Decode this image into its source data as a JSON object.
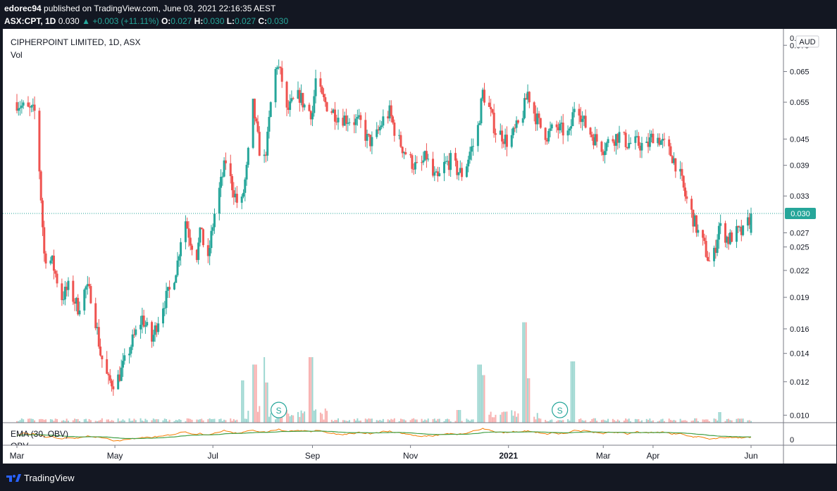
{
  "header": {
    "user": "edorec94",
    "published": "published on TradingView.com, June 03, 2021 22:16:35 AEST",
    "symbol_line": "ASX:CPT, 1D",
    "last": "0.030",
    "change": "+0.003 (+11.11%)",
    "o_label": "O:",
    "o_val": "0.027",
    "h_label": "H:",
    "h_val": "0.030",
    "l_label": "L:",
    "l_val": "0.027",
    "c_label": "C:",
    "c_val": "0.030"
  },
  "legend": {
    "title": "CIPHERPOINT LIMITED, 1D, ASX",
    "vol": "Vol"
  },
  "lower_pane": {
    "ema_label": "EMA (30, OBV)",
    "obv_label": "OBV",
    "zero_label": "0"
  },
  "currency": "AUD",
  "price_badge": "0.030",
  "footer": {
    "brand": "TradingView"
  },
  "colors": {
    "up": "#26a69a",
    "down": "#ef5350",
    "obv": "#f57c00",
    "ema": "#43a047",
    "price_line": "#26a69a"
  },
  "chart_data": {
    "type": "candlestick",
    "y_scale": "log",
    "ylim": [
      0.0096,
      0.082
    ],
    "y_ticks": [
      "0.075",
      "0.065",
      "0.055",
      "0.045",
      "0.039",
      "0.033",
      "0.027",
      "0.025",
      "0.022",
      "0.019",
      "0.016",
      "0.014",
      "0.012",
      "0.010"
    ],
    "y_top_partial": "0.0",
    "x_labels": [
      "Mar",
      "May",
      "Jul",
      "Sep",
      "Nov",
      "2021",
      "Mar",
      "Apr",
      "Jun"
    ],
    "x_label_days": [
      0,
      61,
      122,
      184,
      245,
      306,
      365,
      396,
      457
    ],
    "last_price": 0.03,
    "waypoints": [
      [
        0,
        0.055
      ],
      [
        5,
        0.053
      ],
      [
        12,
        0.052
      ],
      [
        17,
        0.024
      ],
      [
        22,
        0.023
      ],
      [
        28,
        0.019
      ],
      [
        32,
        0.02
      ],
      [
        38,
        0.018
      ],
      [
        43,
        0.02
      ],
      [
        47,
        0.019
      ],
      [
        52,
        0.014
      ],
      [
        57,
        0.012
      ],
      [
        62,
        0.012
      ],
      [
        66,
        0.013
      ],
      [
        72,
        0.015
      ],
      [
        78,
        0.017
      ],
      [
        84,
        0.015
      ],
      [
        90,
        0.018
      ],
      [
        96,
        0.02
      ],
      [
        100,
        0.023
      ],
      [
        104,
        0.03
      ],
      [
        108,
        0.026
      ],
      [
        112,
        0.024
      ],
      [
        115,
        0.028
      ],
      [
        118,
        0.021
      ],
      [
        120,
        0.025
      ],
      [
        123,
        0.03
      ],
      [
        126,
        0.034
      ],
      [
        130,
        0.04
      ],
      [
        133,
        0.036
      ],
      [
        136,
        0.033
      ],
      [
        139,
        0.03
      ],
      [
        143,
        0.038
      ],
      [
        147,
        0.054
      ],
      [
        150,
        0.045
      ],
      [
        153,
        0.038
      ],
      [
        156,
        0.045
      ],
      [
        159,
        0.06
      ],
      [
        162,
        0.068
      ],
      [
        165,
        0.062
      ],
      [
        168,
        0.052
      ],
      [
        172,
        0.055
      ],
      [
        176,
        0.057
      ],
      [
        180,
        0.053
      ],
      [
        184,
        0.052
      ],
      [
        186,
        0.062
      ],
      [
        190,
        0.056
      ],
      [
        195,
        0.053
      ],
      [
        200,
        0.051
      ],
      [
        208,
        0.05
      ],
      [
        214,
        0.049
      ],
      [
        218,
        0.045
      ],
      [
        222,
        0.044
      ],
      [
        228,
        0.05
      ],
      [
        232,
        0.052
      ],
      [
        236,
        0.046
      ],
      [
        240,
        0.043
      ],
      [
        245,
        0.04
      ],
      [
        250,
        0.038
      ],
      [
        255,
        0.041
      ],
      [
        258,
        0.037
      ],
      [
        262,
        0.036
      ],
      [
        266,
        0.039
      ],
      [
        270,
        0.04
      ],
      [
        274,
        0.038
      ],
      [
        278,
        0.037
      ],
      [
        282,
        0.042
      ],
      [
        286,
        0.045
      ],
      [
        290,
        0.058
      ],
      [
        294,
        0.053
      ],
      [
        298,
        0.047
      ],
      [
        302,
        0.046
      ],
      [
        306,
        0.044
      ],
      [
        310,
        0.047
      ],
      [
        314,
        0.05
      ],
      [
        318,
        0.058
      ],
      [
        322,
        0.052
      ],
      [
        326,
        0.048
      ],
      [
        330,
        0.046
      ],
      [
        335,
        0.048
      ],
      [
        340,
        0.047
      ],
      [
        344,
        0.046
      ],
      [
        348,
        0.057
      ],
      [
        352,
        0.05
      ],
      [
        356,
        0.047
      ],
      [
        360,
        0.045
      ],
      [
        365,
        0.043
      ],
      [
        370,
        0.045
      ],
      [
        375,
        0.046
      ],
      [
        380,
        0.044
      ],
      [
        386,
        0.044
      ],
      [
        392,
        0.043
      ],
      [
        396,
        0.046
      ],
      [
        400,
        0.045
      ],
      [
        404,
        0.043
      ],
      [
        408,
        0.041
      ],
      [
        412,
        0.038
      ],
      [
        416,
        0.033
      ],
      [
        420,
        0.03
      ],
      [
        424,
        0.027
      ],
      [
        428,
        0.025
      ],
      [
        431,
        0.023
      ],
      [
        434,
        0.024
      ],
      [
        437,
        0.028
      ],
      [
        440,
        0.027
      ],
      [
        443,
        0.026
      ],
      [
        447,
        0.027
      ],
      [
        450,
        0.027
      ],
      [
        453,
        0.027
      ],
      [
        457,
        0.03
      ]
    ],
    "volume_spikes": [
      [
        140,
        0.4
      ],
      [
        148,
        0.55
      ],
      [
        153,
        0.62
      ],
      [
        155,
        0.38
      ],
      [
        183,
        0.62
      ],
      [
        275,
        0.12
      ],
      [
        288,
        0.55
      ],
      [
        290,
        0.45
      ],
      [
        316,
        0.95
      ],
      [
        318,
        0.42
      ],
      [
        346,
        0.58
      ],
      [
        348,
        0.12
      ],
      [
        438,
        0.1
      ]
    ],
    "signals": [
      {
        "label": "S",
        "day": 163
      },
      {
        "label": "S",
        "day": 338
      }
    ]
  }
}
